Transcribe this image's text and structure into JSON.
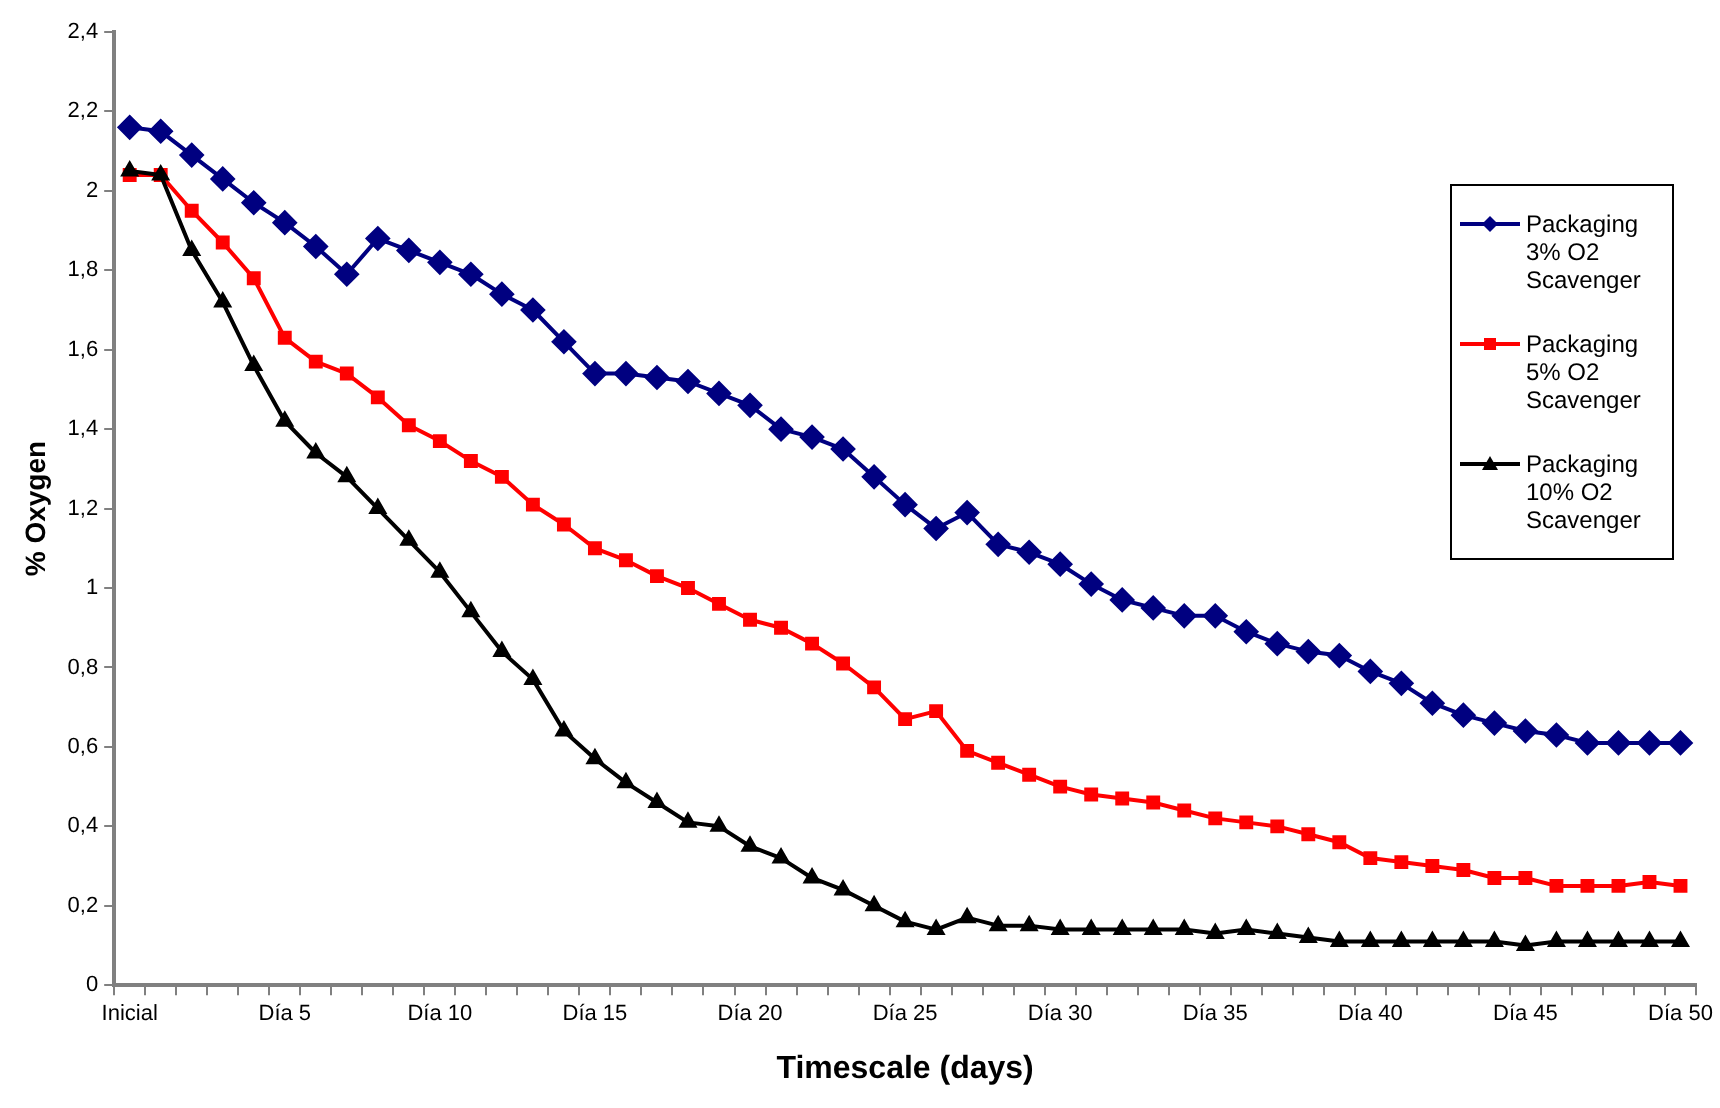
{
  "chart_data": {
    "type": "line",
    "xlabel": "Timescale (days)",
    "ylabel": "% Oxygen",
    "categories": [
      "Inicial",
      null,
      null,
      null,
      null,
      "Día 5",
      null,
      null,
      null,
      null,
      "Día 10",
      null,
      null,
      null,
      null,
      "Día 15",
      null,
      null,
      null,
      null,
      "Día 20",
      null,
      null,
      null,
      null,
      "Día 25",
      null,
      null,
      null,
      null,
      "Día 30",
      null,
      null,
      null,
      null,
      "Día 35",
      null,
      null,
      null,
      null,
      "Día 40",
      null,
      null,
      null,
      null,
      "Día 45",
      null,
      null,
      null,
      null,
      "Día 50"
    ],
    "ylim": [
      0,
      2.4
    ],
    "yticks": [
      0,
      {
        "value": 0.2,
        "label": "0,2"
      },
      {
        "value": 0.4,
        "label": "0,4"
      },
      {
        "value": 0.6,
        "label": "0,6"
      },
      {
        "value": 0.8,
        "label": "0,8"
      },
      1,
      {
        "value": 1.2,
        "label": "1,2"
      },
      {
        "value": 1.4,
        "label": "1,4"
      },
      {
        "value": 1.6,
        "label": "1,6"
      },
      {
        "value": 1.8,
        "label": "1,8"
      },
      2,
      {
        "value": 2.2,
        "label": "2,2"
      },
      {
        "value": 2.4,
        "label": "2,4"
      }
    ],
    "grid": false,
    "legend": "top right",
    "line_style": "solid",
    "series": [
      {
        "name": "Packaging 3% O2 Scavenger",
        "color": "#000080",
        "marker": "diamond",
        "values": [
          2.16,
          2.15,
          2.09,
          2.03,
          1.97,
          1.92,
          1.86,
          1.79,
          1.88,
          1.85,
          1.82,
          1.79,
          1.74,
          1.7,
          1.62,
          1.54,
          1.54,
          1.53,
          1.52,
          1.49,
          1.46,
          1.4,
          1.38,
          1.35,
          1.28,
          1.21,
          1.15,
          1.19,
          1.11,
          1.09,
          1.06,
          1.01,
          0.97,
          0.95,
          0.93,
          0.93,
          0.89,
          0.86,
          0.84,
          0.83,
          0.79,
          0.76,
          0.71,
          0.68,
          0.66,
          0.64,
          0.63,
          0.61,
          0.61,
          0.61,
          0.61
        ]
      },
      {
        "name": "Packaging 5% O2 Scavenger",
        "color": "#ff0000",
        "marker": "square",
        "values": [
          2.04,
          2.04,
          1.95,
          1.87,
          1.78,
          1.63,
          1.57,
          1.54,
          1.48,
          1.41,
          1.37,
          1.32,
          1.28,
          1.21,
          1.16,
          1.1,
          1.07,
          1.03,
          1.0,
          0.96,
          0.92,
          0.9,
          0.86,
          0.81,
          0.75,
          0.67,
          0.69,
          0.59,
          0.56,
          0.53,
          0.5,
          0.48,
          0.47,
          0.46,
          0.44,
          0.42,
          0.41,
          0.4,
          0.38,
          0.36,
          0.32,
          0.31,
          0.3,
          0.29,
          0.27,
          0.27,
          0.25,
          0.25,
          0.25,
          0.26,
          0.25
        ]
      },
      {
        "name": "Packaging 10% O2 Scavenger",
        "color": "#000000",
        "marker": "triangle",
        "values": [
          2.05,
          2.04,
          1.85,
          1.72,
          1.56,
          1.42,
          1.34,
          1.28,
          1.2,
          1.12,
          1.04,
          0.94,
          0.84,
          0.77,
          0.64,
          0.57,
          0.51,
          0.46,
          0.41,
          0.4,
          0.35,
          0.32,
          0.27,
          0.24,
          0.2,
          0.16,
          0.14,
          0.17,
          0.15,
          0.15,
          0.14,
          0.14,
          0.14,
          0.14,
          0.14,
          0.13,
          0.14,
          0.13,
          0.12,
          0.11,
          0.11,
          0.11,
          0.11,
          0.11,
          0.11,
          0.1,
          0.11,
          0.11,
          0.11,
          0.11,
          0.11
        ]
      }
    ]
  }
}
